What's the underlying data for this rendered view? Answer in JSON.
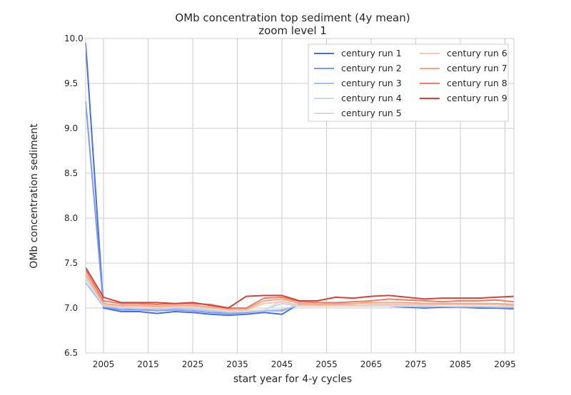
{
  "chart_data": {
    "type": "line",
    "title": "OMb concentration top sediment (4y mean)",
    "subtitle": "zoom level 1",
    "xlabel": "start year for 4-y cycles",
    "ylabel": "OMb concentration sediment",
    "xlim": [
      2001,
      2097
    ],
    "ylim": [
      6.5,
      10.0
    ],
    "x_ticks": [
      2005,
      2015,
      2025,
      2035,
      2045,
      2055,
      2065,
      2075,
      2085,
      2095
    ],
    "y_ticks": [
      "6.5",
      "7.0",
      "7.5",
      "8.0",
      "8.5",
      "9.0",
      "9.5",
      "10.0"
    ],
    "grid": true,
    "legend_position": "top-right",
    "x": [
      2001,
      2005,
      2009,
      2013,
      2017,
      2021,
      2025,
      2029,
      2033,
      2037,
      2041,
      2045,
      2049,
      2053,
      2057,
      2061,
      2065,
      2069,
      2073,
      2077,
      2081,
      2085,
      2089,
      2093,
      2097
    ],
    "series": [
      {
        "name": "century run 1",
        "color": "#4a6ed6",
        "values": [
          9.95,
          7.0,
          6.96,
          6.96,
          6.94,
          6.96,
          6.95,
          6.93,
          6.92,
          6.93,
          6.95,
          6.93,
          7.05,
          7.04,
          7.03,
          7.03,
          7.03,
          7.02,
          7.01,
          7.0,
          7.01,
          7.01,
          7.0,
          7.0,
          6.99
        ]
      },
      {
        "name": "century run 2",
        "color": "#7b9bef",
        "values": [
          9.3,
          7.01,
          6.98,
          6.98,
          6.97,
          6.98,
          6.97,
          6.95,
          6.94,
          6.95,
          6.97,
          6.97,
          7.04,
          7.04,
          7.04,
          7.03,
          7.03,
          7.03,
          7.02,
          7.01,
          7.02,
          7.01,
          7.01,
          7.01,
          7.0
        ]
      },
      {
        "name": "century run 3",
        "color": "#a5c0f7",
        "values": [
          7.28,
          7.02,
          7.0,
          6.99,
          6.99,
          7.0,
          6.99,
          6.97,
          6.95,
          6.96,
          6.97,
          6.98,
          7.03,
          7.03,
          7.03,
          7.03,
          7.03,
          7.03,
          7.03,
          7.02,
          7.02,
          7.02,
          7.02,
          7.01,
          7.01
        ]
      },
      {
        "name": "century run 4",
        "color": "#c9d8ef",
        "values": [
          7.32,
          7.03,
          7.01,
          7.0,
          7.0,
          7.01,
          7.0,
          6.98,
          6.96,
          6.96,
          6.98,
          7.05,
          7.02,
          7.02,
          7.02,
          7.02,
          7.03,
          7.03,
          7.03,
          7.03,
          7.02,
          7.02,
          7.02,
          7.02,
          7.02
        ]
      },
      {
        "name": "century run 5",
        "color": "#dcdcdc",
        "values": [
          7.33,
          7.03,
          7.01,
          7.01,
          7.0,
          7.01,
          7.01,
          6.99,
          6.97,
          6.97,
          6.98,
          7.08,
          7.02,
          7.02,
          7.02,
          7.02,
          7.02,
          7.02,
          7.02,
          7.02,
          7.02,
          7.02,
          7.02,
          7.02,
          7.02
        ]
      },
      {
        "name": "century run 6",
        "color": "#f2c9b1",
        "values": [
          7.36,
          7.04,
          7.02,
          7.02,
          7.01,
          7.02,
          7.02,
          7.0,
          6.98,
          6.98,
          7.05,
          7.07,
          7.03,
          7.03,
          7.03,
          7.03,
          7.04,
          7.04,
          7.04,
          7.04,
          7.04,
          7.04,
          7.04,
          7.04,
          7.03
        ]
      },
      {
        "name": "century run 7",
        "color": "#f4a889",
        "values": [
          7.38,
          7.05,
          7.03,
          7.03,
          7.02,
          7.03,
          7.03,
          7.01,
          6.99,
          6.99,
          7.08,
          7.1,
          7.05,
          7.04,
          7.05,
          7.05,
          7.06,
          7.06,
          7.06,
          7.05,
          7.05,
          7.05,
          7.05,
          7.05,
          7.04
        ]
      },
      {
        "name": "century run 8",
        "color": "#ec7f63",
        "values": [
          7.42,
          7.08,
          7.05,
          7.05,
          7.04,
          7.05,
          7.05,
          7.04,
          7.0,
          7.0,
          7.11,
          7.12,
          7.07,
          7.06,
          7.06,
          7.07,
          7.08,
          7.1,
          7.09,
          7.08,
          7.07,
          7.08,
          7.08,
          7.09,
          7.07
        ]
      },
      {
        "name": "century run 9",
        "color": "#cf453c",
        "values": [
          7.45,
          7.12,
          7.06,
          7.06,
          7.06,
          7.05,
          7.06,
          7.03,
          7.0,
          7.13,
          7.14,
          7.14,
          7.08,
          7.08,
          7.12,
          7.11,
          7.13,
          7.14,
          7.12,
          7.1,
          7.11,
          7.11,
          7.11,
          7.12,
          7.13
        ]
      }
    ]
  }
}
